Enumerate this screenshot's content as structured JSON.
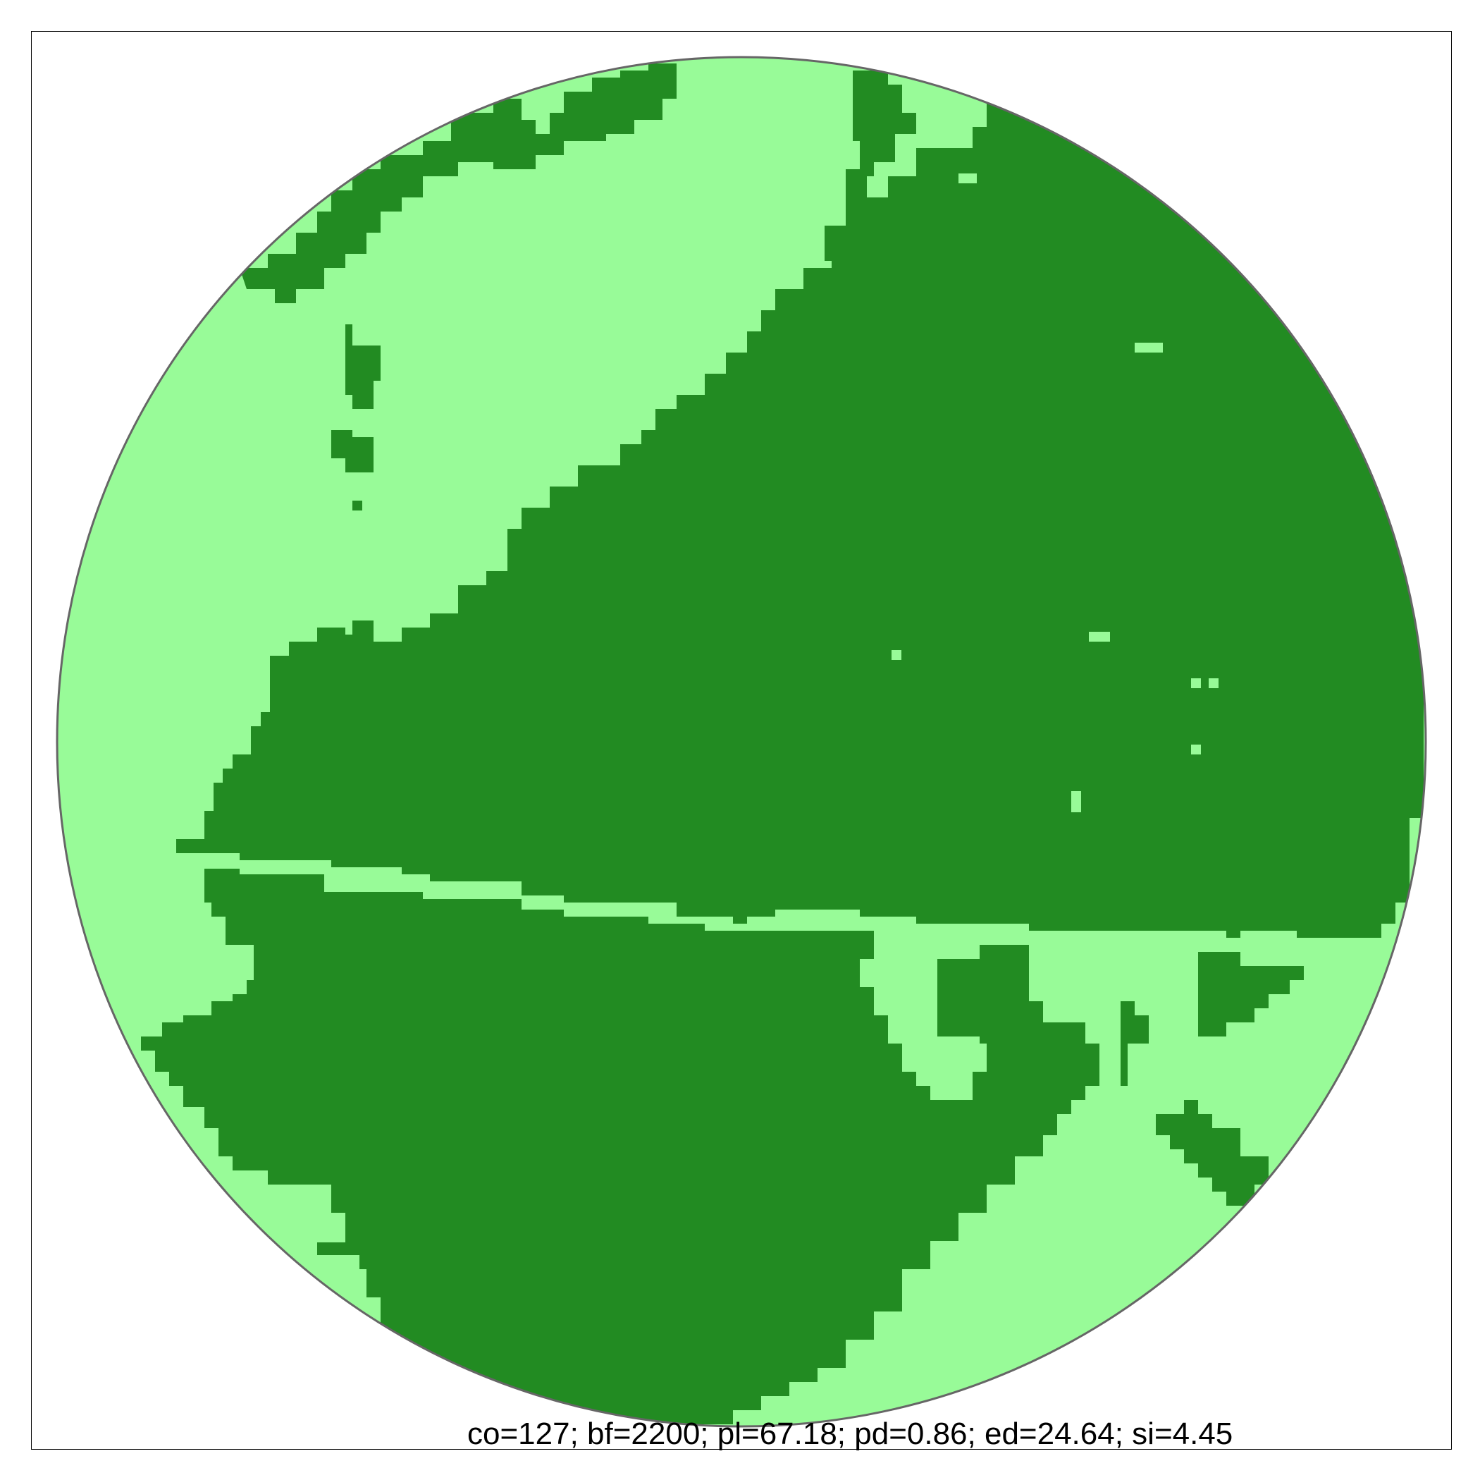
{
  "map": {
    "colors": {
      "background_class": "#98fb98",
      "forest_class": "#228b22",
      "boundary": "#666666",
      "frame": "#000000"
    },
    "metrics_label": "co=127; bf=2200; pl=67.18; pd=0.86; ed=24.64; si=4.45"
  }
}
